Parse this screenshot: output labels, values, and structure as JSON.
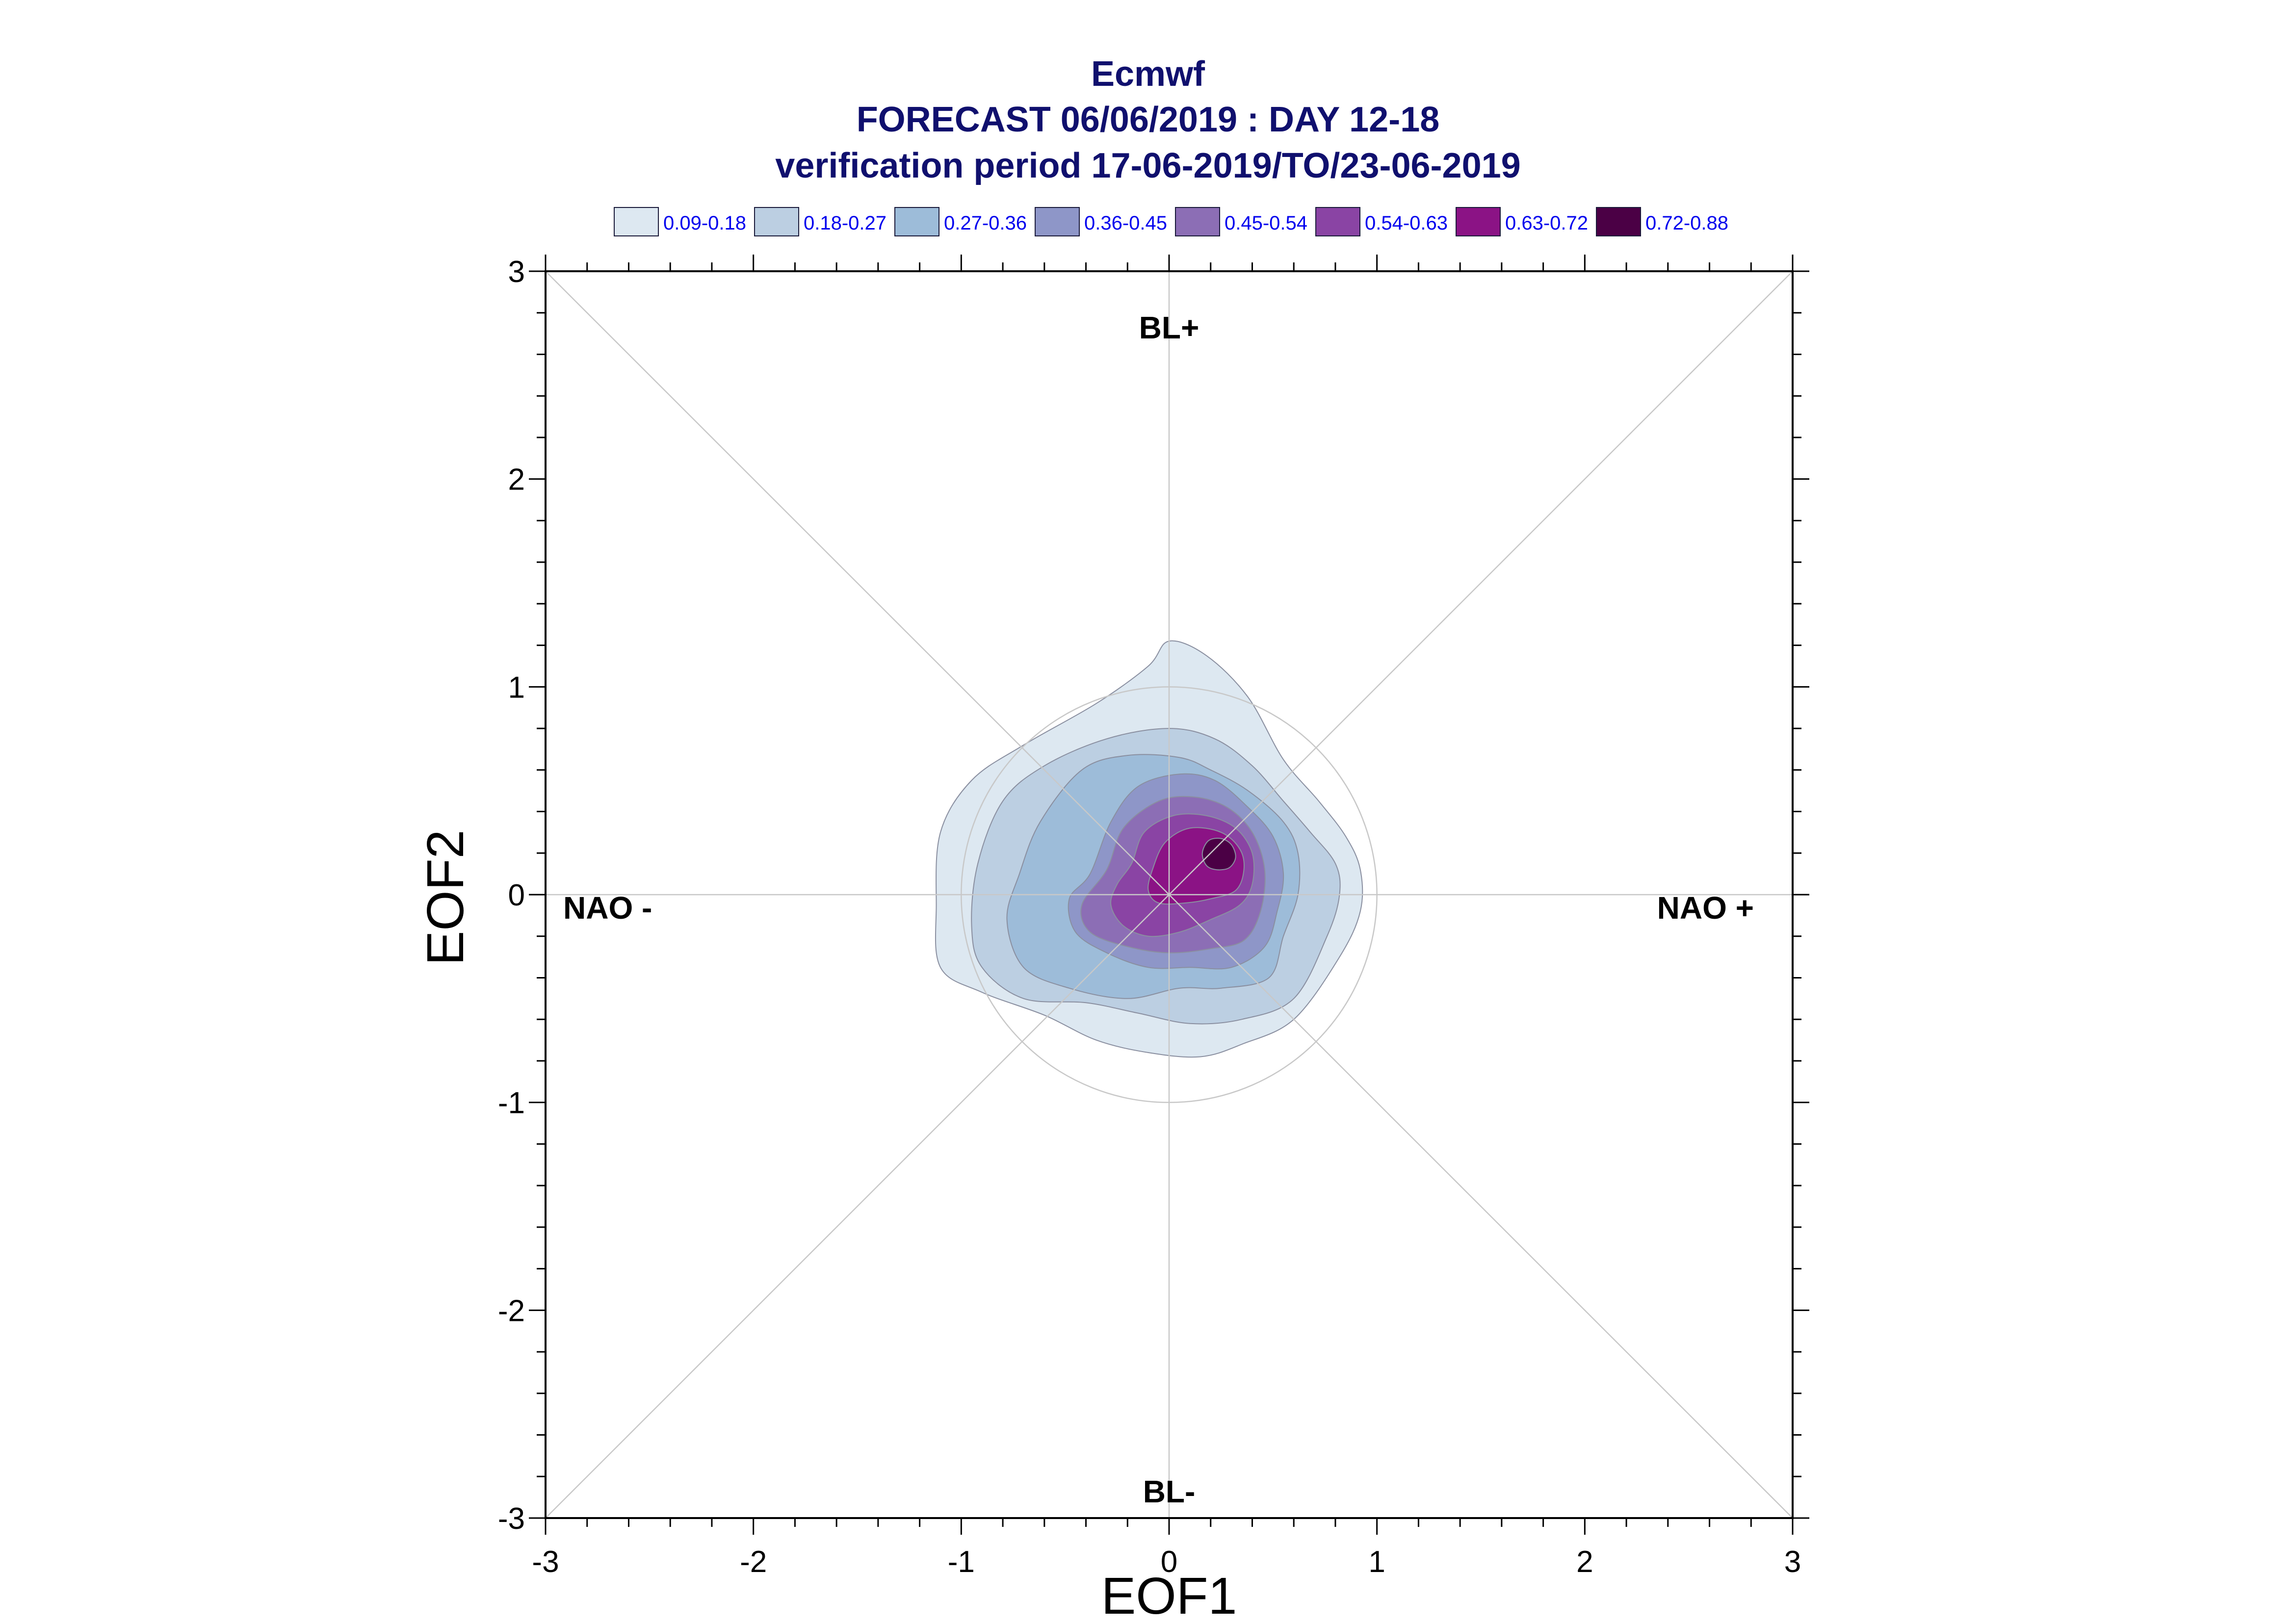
{
  "title": {
    "line1": "Ecmwf",
    "line2": "FORECAST 06/06/2019 : DAY 12-18",
    "line3": "verification period 17-06-2019/TO/23-06-2019"
  },
  "legend": [
    {
      "label": "0.09-0.18",
      "color": "#dde8f1"
    },
    {
      "label": "0.18-0.27",
      "color": "#bccfe2"
    },
    {
      "label": "0.27-0.36",
      "color": "#9dbcd9"
    },
    {
      "label": "0.36-0.45",
      "color": "#8e96c8"
    },
    {
      "label": "0.45-0.54",
      "color": "#8c6eb5"
    },
    {
      "label": "0.54-0.63",
      "color": "#8a44a4"
    },
    {
      "label": "0.63-0.72",
      "color": "#8b1385"
    },
    {
      "label": "0.72-0.88",
      "color": "#4b0045"
    }
  ],
  "regime_labels": {
    "top": "BL+",
    "bottom": "BL-",
    "left": "NAO -",
    "right": "NAO +"
  },
  "chart_data": {
    "type": "contour",
    "xlabel": "EOF1",
    "ylabel": "EOF2",
    "xlim": [
      -3,
      3
    ],
    "ylim": [
      -3,
      3
    ],
    "xticks": [
      "-3",
      "-2",
      "-1",
      "0",
      "1",
      "2",
      "3"
    ],
    "yticks": [
      "-3",
      "-2",
      "-1",
      "0",
      "1",
      "2",
      "3"
    ],
    "reference_circle_radius": 1,
    "diagonal_guides": true,
    "levels": [
      {
        "range": "0.09-0.18",
        "color": "#dde8f1",
        "outline": [
          [
            -1.1,
            0.3
          ],
          [
            -0.95,
            0.55
          ],
          [
            -0.7,
            0.72
          ],
          [
            -0.35,
            0.92
          ],
          [
            -0.1,
            1.1
          ],
          [
            0.0,
            1.22
          ],
          [
            0.18,
            1.15
          ],
          [
            0.38,
            0.95
          ],
          [
            0.55,
            0.65
          ],
          [
            0.72,
            0.45
          ],
          [
            0.85,
            0.28
          ],
          [
            0.92,
            0.12
          ],
          [
            0.92,
            -0.08
          ],
          [
            0.82,
            -0.3
          ],
          [
            0.6,
            -0.6
          ],
          [
            0.35,
            -0.72
          ],
          [
            0.15,
            -0.78
          ],
          [
            -0.1,
            -0.76
          ],
          [
            -0.35,
            -0.7
          ],
          [
            -0.6,
            -0.58
          ],
          [
            -0.9,
            -0.47
          ],
          [
            -1.1,
            -0.35
          ],
          [
            -1.12,
            -0.05
          ]
        ]
      },
      {
        "range": "0.18-0.27",
        "color": "#bccfe2",
        "outline": [
          [
            -0.92,
            0.15
          ],
          [
            -0.8,
            0.45
          ],
          [
            -0.6,
            0.62
          ],
          [
            -0.3,
            0.75
          ],
          [
            0.0,
            0.8
          ],
          [
            0.22,
            0.75
          ],
          [
            0.4,
            0.62
          ],
          [
            0.55,
            0.45
          ],
          [
            0.68,
            0.3
          ],
          [
            0.8,
            0.15
          ],
          [
            0.82,
            0.0
          ],
          [
            0.76,
            -0.2
          ],
          [
            0.6,
            -0.5
          ],
          [
            0.35,
            -0.6
          ],
          [
            0.1,
            -0.62
          ],
          [
            -0.15,
            -0.57
          ],
          [
            -0.4,
            -0.52
          ],
          [
            -0.7,
            -0.5
          ],
          [
            -0.9,
            -0.35
          ],
          [
            -0.95,
            -0.15
          ]
        ]
      },
      {
        "range": "0.27-0.36",
        "color": "#9dbcd9",
        "outline": [
          [
            -0.72,
            0.1
          ],
          [
            -0.62,
            0.35
          ],
          [
            -0.42,
            0.6
          ],
          [
            -0.2,
            0.67
          ],
          [
            0.05,
            0.66
          ],
          [
            0.2,
            0.6
          ],
          [
            0.38,
            0.5
          ],
          [
            0.55,
            0.35
          ],
          [
            0.62,
            0.2
          ],
          [
            0.62,
            0.0
          ],
          [
            0.55,
            -0.2
          ],
          [
            0.48,
            -0.4
          ],
          [
            0.25,
            -0.45
          ],
          [
            0.05,
            -0.45
          ],
          [
            -0.2,
            -0.5
          ],
          [
            -0.48,
            -0.45
          ],
          [
            -0.7,
            -0.35
          ],
          [
            -0.78,
            -0.12
          ]
        ]
      },
      {
        "range": "0.36-0.45",
        "color": "#8e96c8",
        "outline": [
          [
            -0.38,
            0.1
          ],
          [
            -0.28,
            0.35
          ],
          [
            -0.15,
            0.52
          ],
          [
            0.05,
            0.58
          ],
          [
            0.22,
            0.55
          ],
          [
            0.38,
            0.42
          ],
          [
            0.5,
            0.28
          ],
          [
            0.55,
            0.1
          ],
          [
            0.52,
            -0.08
          ],
          [
            0.46,
            -0.25
          ],
          [
            0.3,
            -0.35
          ],
          [
            0.1,
            -0.35
          ],
          [
            -0.1,
            -0.35
          ],
          [
            -0.3,
            -0.28
          ],
          [
            -0.45,
            -0.18
          ],
          [
            -0.48,
            -0.02
          ]
        ]
      },
      {
        "range": "0.45-0.54",
        "color": "#8c6eb5",
        "outline": [
          [
            -0.3,
            0.12
          ],
          [
            -0.22,
            0.32
          ],
          [
            -0.05,
            0.45
          ],
          [
            0.12,
            0.47
          ],
          [
            0.28,
            0.42
          ],
          [
            0.4,
            0.3
          ],
          [
            0.46,
            0.12
          ],
          [
            0.44,
            -0.08
          ],
          [
            0.36,
            -0.22
          ],
          [
            0.2,
            -0.26
          ],
          [
            0.0,
            -0.28
          ],
          [
            -0.2,
            -0.25
          ],
          [
            -0.38,
            -0.18
          ],
          [
            -0.42,
            -0.05
          ]
        ]
      },
      {
        "range": "0.54-0.63",
        "color": "#8a44a4",
        "outline": [
          [
            -0.18,
            0.15
          ],
          [
            -0.12,
            0.3
          ],
          [
            0.02,
            0.38
          ],
          [
            0.18,
            0.38
          ],
          [
            0.32,
            0.32
          ],
          [
            0.4,
            0.2
          ],
          [
            0.4,
            0.05
          ],
          [
            0.34,
            -0.05
          ],
          [
            0.2,
            -0.12
          ],
          [
            0.05,
            -0.18
          ],
          [
            -0.1,
            -0.2
          ],
          [
            -0.22,
            -0.15
          ],
          [
            -0.28,
            -0.05
          ],
          [
            -0.25,
            0.05
          ]
        ]
      },
      {
        "range": "0.63-0.72",
        "color": "#8b1385",
        "outline": [
          [
            -0.08,
            0.12
          ],
          [
            -0.02,
            0.25
          ],
          [
            0.1,
            0.32
          ],
          [
            0.25,
            0.3
          ],
          [
            0.34,
            0.22
          ],
          [
            0.36,
            0.12
          ],
          [
            0.32,
            0.02
          ],
          [
            0.2,
            -0.02
          ],
          [
            0.08,
            -0.04
          ],
          [
            -0.05,
            -0.04
          ],
          [
            -0.1,
            0.02
          ]
        ]
      },
      {
        "range": "0.72-0.88",
        "color": "#4b0045",
        "outline": [
          [
            0.16,
            0.2
          ],
          [
            0.19,
            0.26
          ],
          [
            0.25,
            0.27
          ],
          [
            0.3,
            0.24
          ],
          [
            0.32,
            0.18
          ],
          [
            0.29,
            0.13
          ],
          [
            0.23,
            0.12
          ],
          [
            0.18,
            0.14
          ]
        ]
      }
    ]
  }
}
